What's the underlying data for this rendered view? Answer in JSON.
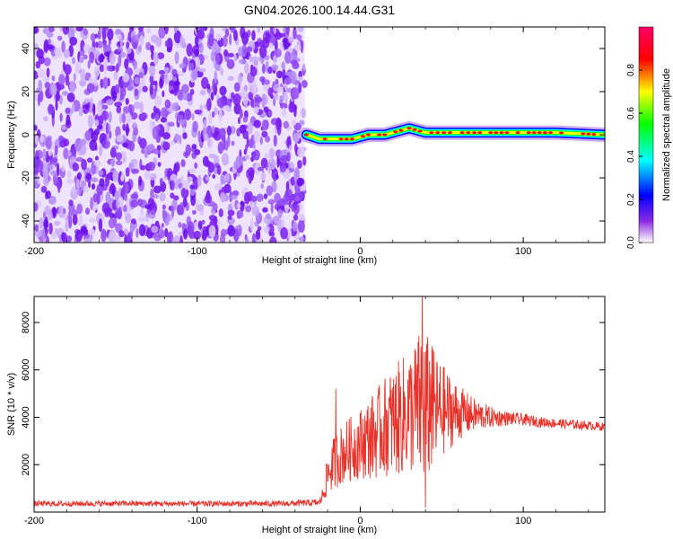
{
  "title": "GN04.2026.100.14.44.G31",
  "chart_data": [
    {
      "type": "heatmap",
      "xlabel": "Height of straight line (km)",
      "ylabel": "Frequency (Hz)",
      "xlim": [
        -200,
        150
      ],
      "ylim": [
        -50,
        50
      ],
      "xticks": [
        -200,
        -100,
        0,
        100
      ],
      "yticks": [
        -40,
        -20,
        0,
        20,
        40
      ],
      "noise_region_x": [
        -200,
        -34
      ],
      "ridge": [
        {
          "x": -33,
          "y": 0
        },
        {
          "x": -25,
          "y": -2
        },
        {
          "x": -15,
          "y": -2
        },
        {
          "x": -5,
          "y": -2
        },
        {
          "x": 5,
          "y": 0
        },
        {
          "x": 15,
          "y": 0
        },
        {
          "x": 25,
          "y": 2
        },
        {
          "x": 30,
          "y": 3
        },
        {
          "x": 40,
          "y": 1
        },
        {
          "x": 55,
          "y": 1
        },
        {
          "x": 70,
          "y": 1
        },
        {
          "x": 90,
          "y": 1
        },
        {
          "x": 120,
          "y": 1
        },
        {
          "x": 150,
          "y": 0
        }
      ],
      "colorbar": {
        "label": "Normalized spectral amplitude",
        "range": [
          0,
          1
        ],
        "ticks": [
          "0.0",
          "0.2",
          "0.4",
          "0.6",
          "0.8"
        ],
        "colors": [
          "#ffffff",
          "#8a2be2",
          "#0000ff",
          "#00ffff",
          "#00ff00",
          "#ffff00",
          "#ff0000",
          "#ff0066"
        ]
      }
    },
    {
      "type": "line",
      "xlabel": "Height of straight line (km)",
      "ylabel": "SNR (10 * v/v)",
      "xlim": [
        -200,
        150
      ],
      "ylim": [
        0,
        9100
      ],
      "xticks": [
        -200,
        -100,
        0,
        100
      ],
      "yticks": [
        2000,
        4000,
        6000,
        8000
      ],
      "color": "#e8322a",
      "series": [
        {
          "x": [
            -200,
            -150,
            -100,
            -50,
            -25,
            -22,
            -20,
            -15,
            -10,
            -5,
            0,
            5,
            10,
            15,
            20,
            25,
            30,
            35,
            38,
            40,
            45,
            50,
            60,
            70,
            80,
            90,
            100,
            110,
            120,
            130,
            140,
            150
          ],
          "mean": [
            350,
            360,
            350,
            350,
            400,
            900,
            1600,
            2200,
            2500,
            2700,
            2900,
            3100,
            3300,
            3600,
            3800,
            4000,
            4200,
            4400,
            4500,
            4400,
            4300,
            4300,
            4200,
            4100,
            4000,
            3950,
            3900,
            3800,
            3750,
            3700,
            3650,
            3600
          ],
          "noise_amplitude": [
            120,
            120,
            120,
            120,
            150,
            400,
            900,
            1200,
            1300,
            1400,
            1500,
            1700,
            1900,
            2100,
            2300,
            2500,
            2600,
            3000,
            3600,
            3300,
            2600,
            2000,
            1200,
            700,
            450,
            300,
            250,
            220,
            200,
            200,
            180,
            180
          ],
          "spikes": [
            {
              "x": -15,
              "y": 5200
            },
            {
              "x": 38,
              "y": 9100
            },
            {
              "x": 40,
              "y": 200
            },
            {
              "x": 44,
              "y": 7000
            },
            {
              "x": 34,
              "y": 6800
            }
          ]
        }
      ]
    }
  ]
}
